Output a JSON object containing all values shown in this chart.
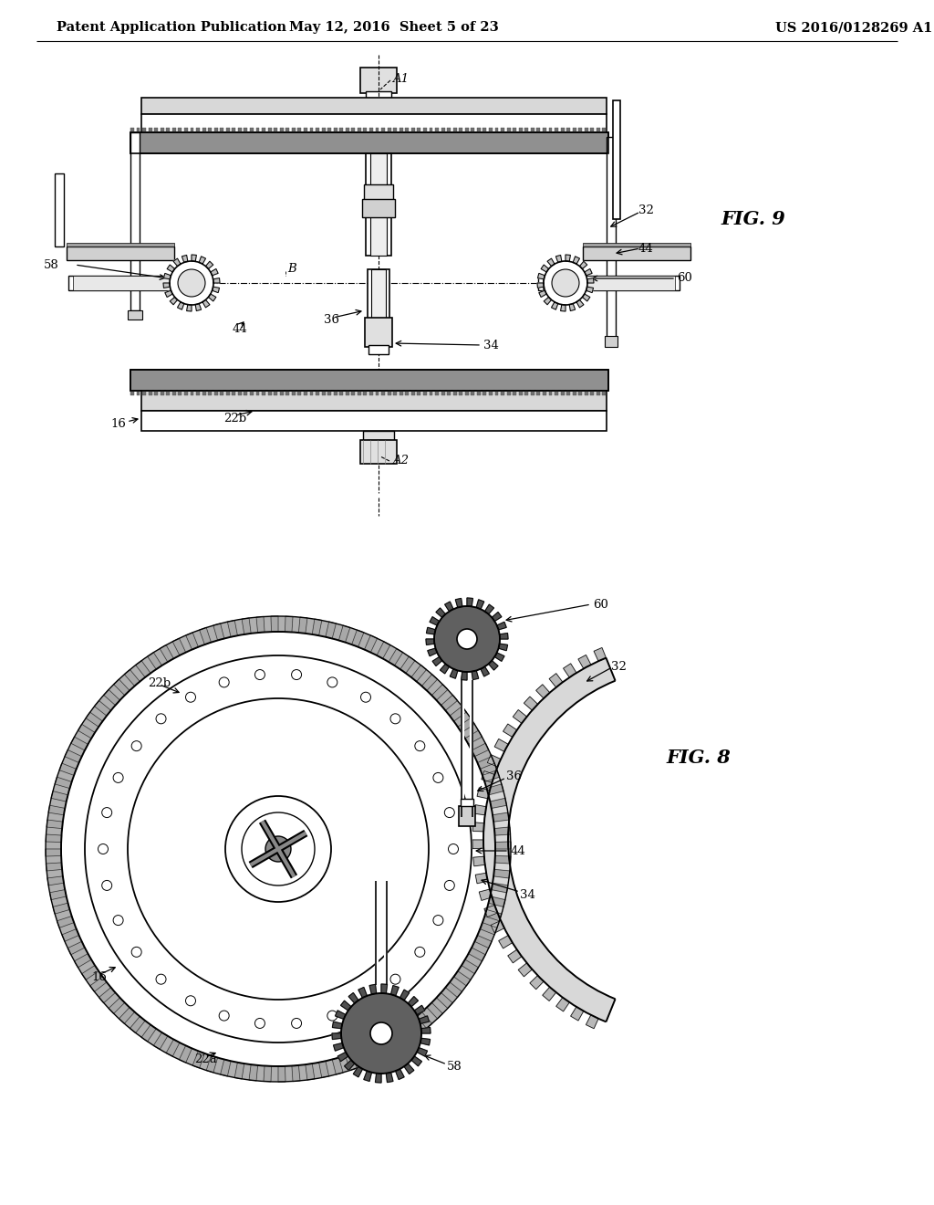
{
  "background_color": "#ffffff",
  "line_color": "#000000",
  "header_left": "Patent Application Publication",
  "header_mid": "May 12, 2016  Sheet 5 of 23",
  "header_right": "US 2016/0128269 A1",
  "fig9_label": "FIG. 9",
  "fig8_label": "FIG. 8",
  "header_fontsize": 10.5,
  "label_fontsize": 9.5,
  "fig_label_fontsize": 15
}
